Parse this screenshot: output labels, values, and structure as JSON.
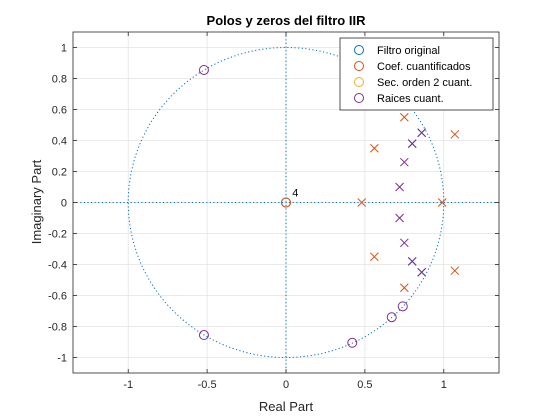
{
  "chart_data": {
    "type": "scatter",
    "title": "Polos y zeros del filtro IIR",
    "xlabel": "Real Part",
    "ylabel": "Imaginary Part",
    "xlim": [
      -1.35,
      1.35
    ],
    "ylim": [
      -1.1,
      1.1
    ],
    "x_ticks": [
      -1,
      -0.5,
      0,
      0.5,
      1
    ],
    "y_ticks": [
      -1,
      -0.8,
      -0.6,
      -0.4,
      -0.2,
      0,
      0.2,
      0.4,
      0.6,
      0.8,
      1
    ],
    "x_tick_labels": [
      "-1",
      "-0.5",
      "0",
      "0.5",
      "1"
    ],
    "y_tick_labels": [
      "-1",
      "-0.8",
      "-0.6",
      "-0.4",
      "-0.2",
      "0",
      "0.2",
      "0.4",
      "0.6",
      "0.8",
      "1"
    ],
    "grid": true,
    "legend_position": "top-right",
    "unit_circle": true,
    "annotations": [
      {
        "text": "4",
        "x": 0.04,
        "y": 0.04
      }
    ],
    "series": [
      {
        "name": "Filtro original",
        "color": "#0072BD",
        "zeros": [
          {
            "x": 0,
            "y": 0
          }
        ],
        "poles": [
          {
            "x": 0.86,
            "y": 0.45
          },
          {
            "x": 0.86,
            "y": -0.45
          },
          {
            "x": 0.8,
            "y": 0.38
          },
          {
            "x": 0.8,
            "y": -0.38
          }
        ]
      },
      {
        "name": "Coef. cuantificados",
        "color": "#D95319",
        "zeros": [
          {
            "x": 0,
            "y": 0
          }
        ],
        "poles": [
          {
            "x": 1.07,
            "y": 0.44
          },
          {
            "x": 1.07,
            "y": -0.44
          },
          {
            "x": 0.75,
            "y": 0.55
          },
          {
            "x": 0.75,
            "y": -0.55
          },
          {
            "x": 0.56,
            "y": 0.35
          },
          {
            "x": 0.56,
            "y": -0.35
          },
          {
            "x": 0.48,
            "y": 0
          },
          {
            "x": 0.99,
            "y": 0
          }
        ]
      },
      {
        "name": "Sec. orden 2 cuant.",
        "color": "#EDB120",
        "zeros": [],
        "poles": []
      },
      {
        "name": "Raices cuant.",
        "color": "#7E2F8E",
        "zeros": [
          {
            "x": -0.52,
            "y": 0.855
          },
          {
            "x": -0.52,
            "y": -0.855
          },
          {
            "x": 0.42,
            "y": -0.905
          },
          {
            "x": 0.67,
            "y": -0.74
          },
          {
            "x": 0.74,
            "y": -0.67
          }
        ],
        "poles": [
          {
            "x": 0.86,
            "y": 0.45
          },
          {
            "x": 0.86,
            "y": -0.45
          },
          {
            "x": 0.8,
            "y": 0.38
          },
          {
            "x": 0.8,
            "y": -0.38
          },
          {
            "x": 0.75,
            "y": 0.26
          },
          {
            "x": 0.75,
            "y": -0.26
          },
          {
            "x": 0.72,
            "y": 0.1
          },
          {
            "x": 0.72,
            "y": -0.1
          }
        ]
      }
    ]
  }
}
